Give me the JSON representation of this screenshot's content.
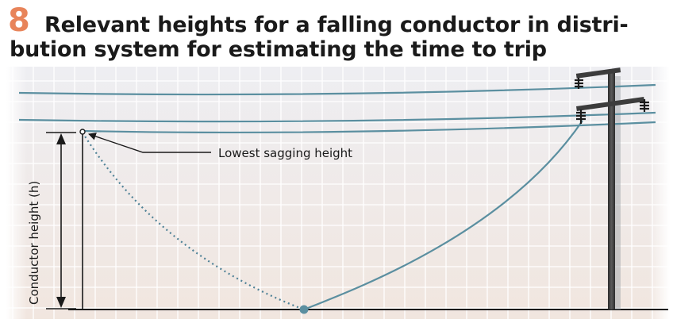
{
  "figure": {
    "number": "8",
    "title_line1": "Relevant heights for a falling conductor in distri-",
    "title_line2": "bution system for estimating the time to trip"
  },
  "labels": {
    "lowest_sagging_height": "Lowest sagging height",
    "conductor_height": "Conductor height (h)"
  },
  "colors": {
    "figure_number": "#e8845a",
    "conductor": "#5b8fa0",
    "pole": "#3c3c3c",
    "grid": "#ffffff",
    "background_top": "#eeeef2",
    "background_bottom": "#f1e6df"
  }
}
